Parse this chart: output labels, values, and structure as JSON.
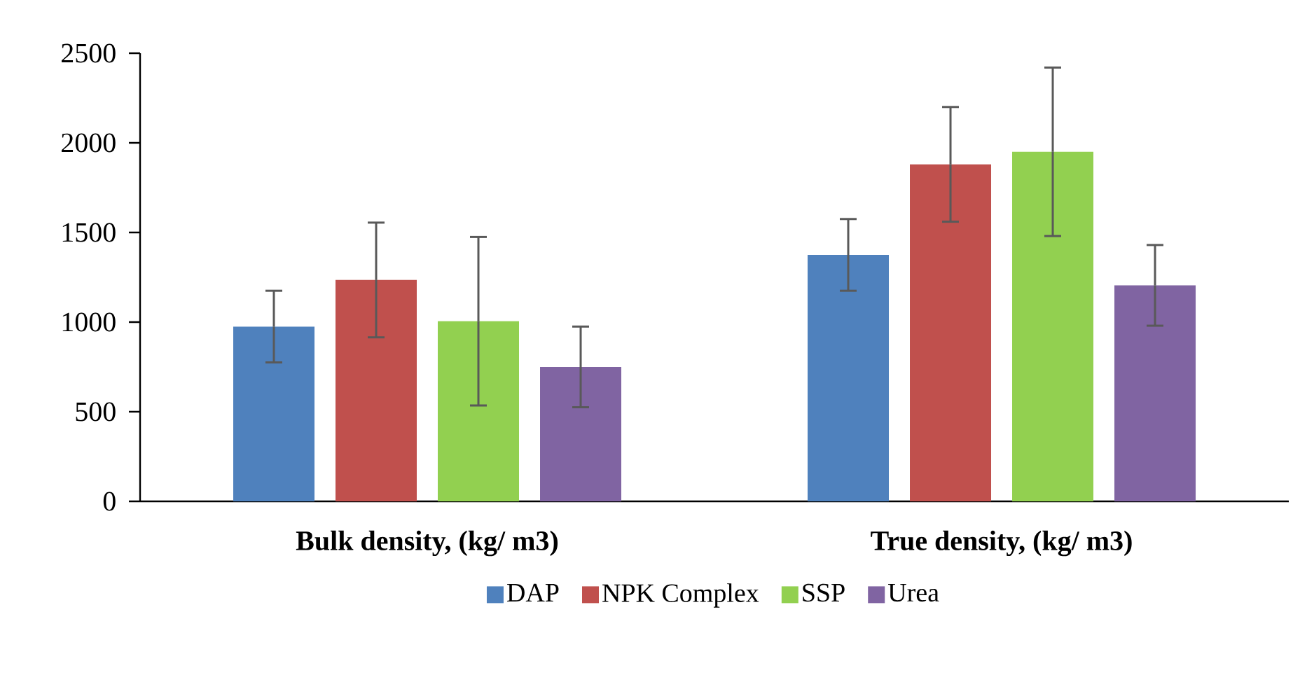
{
  "chart_data": {
    "type": "bar",
    "categories": [
      "Bulk density, (kg/ m3)",
      "True density, (kg/ m3)"
    ],
    "series": [
      {
        "name": "DAP",
        "color": "#4f81bd",
        "values": [
          975,
          1375
        ],
        "errors": [
          200,
          200
        ]
      },
      {
        "name": "NPK Complex",
        "color": "#c0504d",
        "values": [
          1235,
          1880
        ],
        "errors": [
          320,
          320
        ]
      },
      {
        "name": "SSP",
        "color": "#92d050",
        "values": [
          1005,
          1950
        ],
        "errors": [
          470,
          470
        ]
      },
      {
        "name": "Urea",
        "color": "#8064a2",
        "values": [
          750,
          1205
        ],
        "errors": [
          225,
          225
        ]
      }
    ],
    "ylim": [
      0,
      2500
    ],
    "yticks": [
      0,
      500,
      1000,
      1500,
      2000,
      2500
    ],
    "legend": "bottom"
  }
}
